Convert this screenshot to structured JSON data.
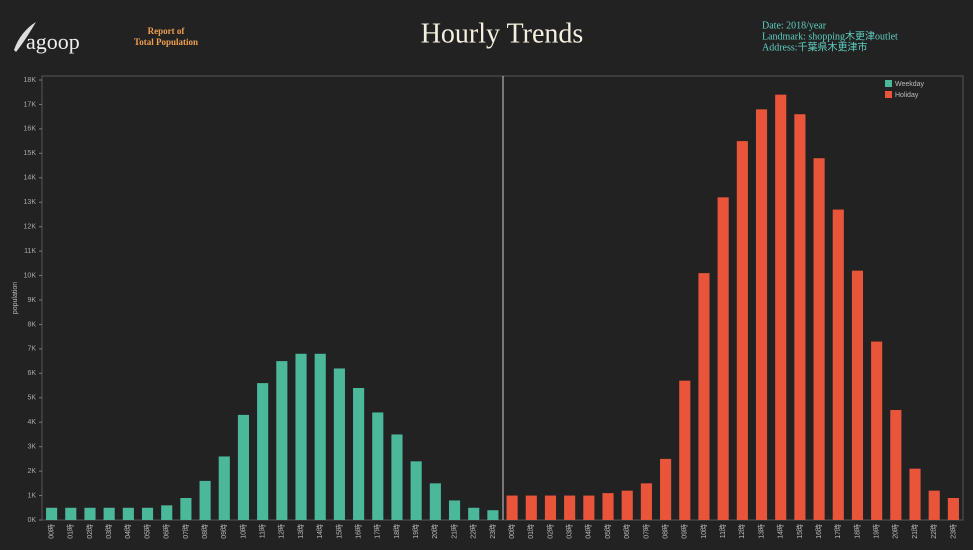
{
  "header": {
    "logo": "agoop",
    "report": [
      "Report of",
      "Total Population"
    ],
    "info": [
      "Date: 2018/year",
      "Landmark: shopping木更津outlet",
      "Address:千葉県木更津市"
    ]
  },
  "chart_data": {
    "type": "bar",
    "title": "Hourly Trends",
    "ylabel": "population",
    "categories": [
      "00時",
      "01時",
      "02時",
      "03時",
      "04時",
      "05時",
      "06時",
      "07時",
      "08時",
      "09時",
      "10時",
      "11時",
      "12時",
      "13時",
      "14時",
      "15時",
      "16時",
      "17時",
      "18時",
      "19時",
      "20時",
      "21時",
      "22時",
      "23時"
    ],
    "series": [
      {
        "name": "Weekday",
        "color": "#4cb89a",
        "values": [
          500,
          500,
          500,
          500,
          500,
          500,
          600,
          900,
          1600,
          2600,
          4300,
          5600,
          6500,
          6800,
          6800,
          6200,
          5400,
          4400,
          3500,
          2400,
          1500,
          800,
          500,
          400
        ]
      },
      {
        "name": "Holiday",
        "color": "#e8553b",
        "values": [
          1000,
          1000,
          1000,
          1000,
          1000,
          1100,
          1200,
          1500,
          2500,
          5700,
          10100,
          13200,
          15500,
          16800,
          17400,
          16600,
          14800,
          12700,
          10200,
          7300,
          4500,
          2100,
          1200,
          900
        ]
      }
    ],
    "ylim": [
      0,
      18000
    ],
    "yticks": [
      {
        "value": 0,
        "label": "0K"
      },
      {
        "value": 1000,
        "label": "1K"
      },
      {
        "value": 2000,
        "label": "2K"
      },
      {
        "value": 3000,
        "label": "3K"
      },
      {
        "value": 4000,
        "label": "4K"
      },
      {
        "value": 5000,
        "label": "5K"
      },
      {
        "value": 6000,
        "label": "6K"
      },
      {
        "value": 7000,
        "label": "7K"
      },
      {
        "value": 8000,
        "label": "8K"
      },
      {
        "value": 9000,
        "label": "9K"
      },
      {
        "value": 10000,
        "label": "10K"
      },
      {
        "value": 11000,
        "label": "11K"
      },
      {
        "value": 12000,
        "label": "12K"
      },
      {
        "value": 13000,
        "label": "13K"
      },
      {
        "value": 14000,
        "label": "14K"
      },
      {
        "value": 15000,
        "label": "15K"
      },
      {
        "value": 16000,
        "label": "16K"
      },
      {
        "value": 17000,
        "label": "17K"
      },
      {
        "value": 18000,
        "label": "18K"
      }
    ],
    "grid": false,
    "legend": "top-right"
  }
}
